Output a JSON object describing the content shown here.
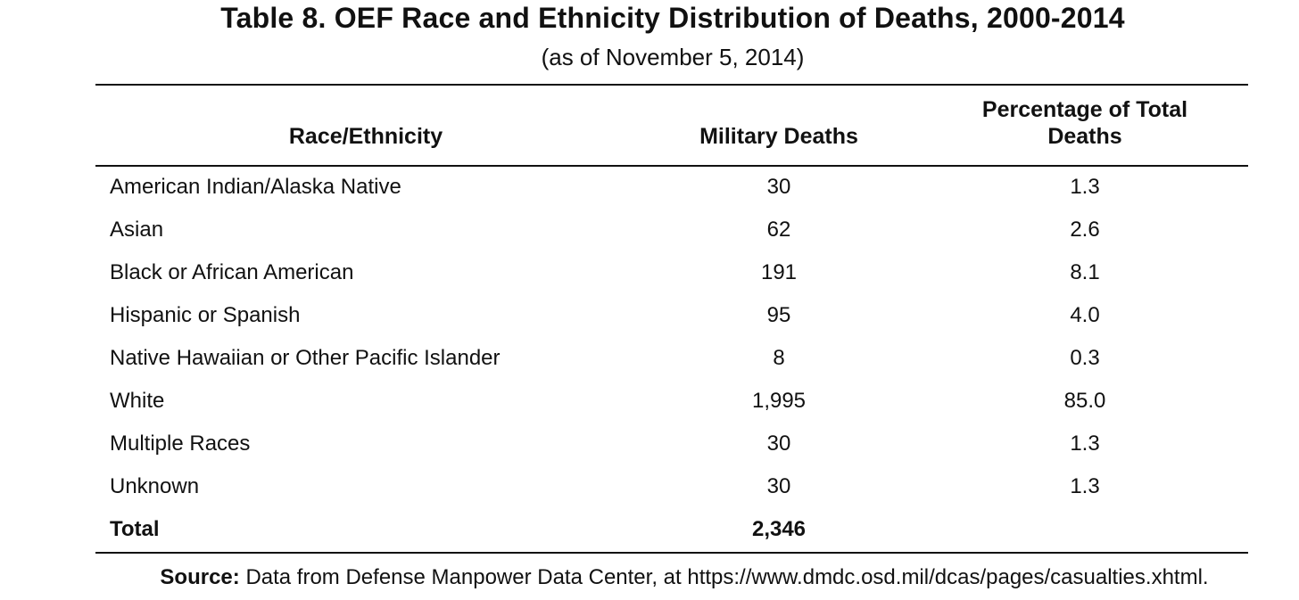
{
  "title": "Table 8. OEF Race and Ethnicity Distribution of Deaths, 2000-2014",
  "subtitle": "(as of November 5, 2014)",
  "columns": {
    "race": "Race/Ethnicity",
    "deaths": "Military Deaths",
    "pct_line1": "Percentage of Total",
    "pct_line2": "Deaths"
  },
  "rows": [
    {
      "race": "American Indian/Alaska Native",
      "deaths": "30",
      "pct": "1.3"
    },
    {
      "race": "Asian",
      "deaths": "62",
      "pct": "2.6"
    },
    {
      "race": "Black or African American",
      "deaths": "191",
      "pct": "8.1"
    },
    {
      "race": "Hispanic or Spanish",
      "deaths": "95",
      "pct": "4.0"
    },
    {
      "race": "Native Hawaiian or Other Pacific Islander",
      "deaths": "8",
      "pct": "0.3"
    },
    {
      "race": "White",
      "deaths": "1,995",
      "pct": "85.0"
    },
    {
      "race": "Multiple Races",
      "deaths": "30",
      "pct": "1.3"
    },
    {
      "race": "Unknown",
      "deaths": "30",
      "pct": "1.3"
    }
  ],
  "total": {
    "label": "Total",
    "deaths": "2,346"
  },
  "source": {
    "label": "Source:",
    "text": "Data from Defense Manpower Data Center, at https://www.dmdc.osd.mil/dcas/pages/casualties.xhtml."
  }
}
